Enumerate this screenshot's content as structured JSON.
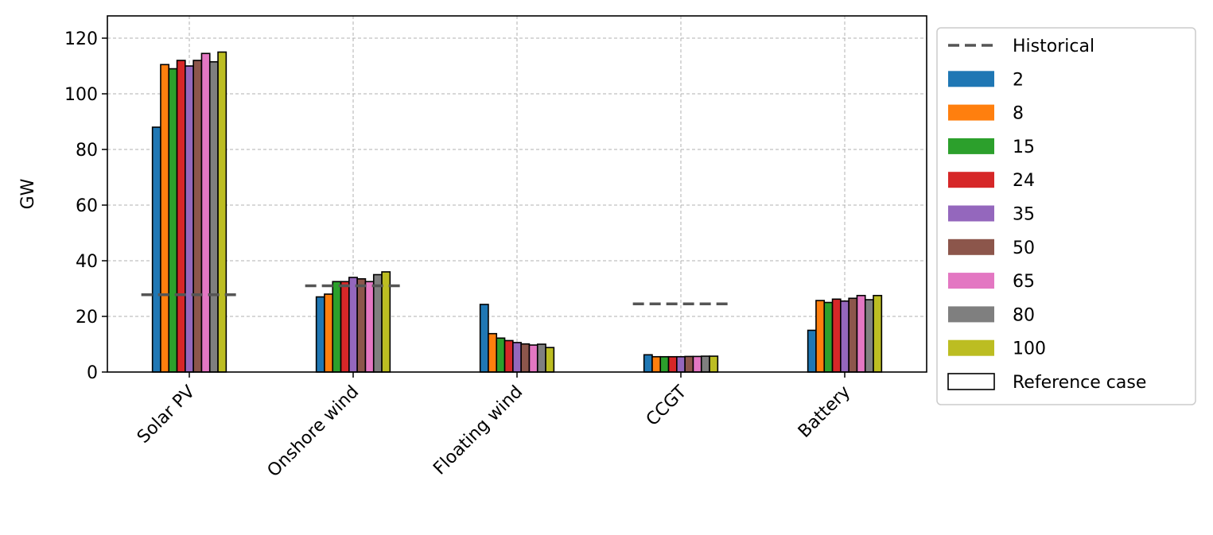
{
  "chart_data": {
    "type": "bar",
    "ylabel": "GW",
    "ylim": [
      0,
      128
    ],
    "yticks": [
      0,
      20,
      40,
      60,
      80,
      100,
      120
    ],
    "grid": true,
    "legend_position": "outside-right",
    "categories": [
      "Solar PV",
      "Onshore wind",
      "Floating wind",
      "CCGT",
      "Battery"
    ],
    "series": [
      {
        "name": "2",
        "color": "#1f77b4",
        "values": [
          88,
          27,
          24.3,
          6.2,
          15
        ]
      },
      {
        "name": "8",
        "color": "#ff7f0e",
        "values": [
          110.5,
          28,
          13.8,
          5.5,
          25.7
        ]
      },
      {
        "name": "15",
        "color": "#2ca02c",
        "values": [
          109,
          32.5,
          12.2,
          5.5,
          25
        ]
      },
      {
        "name": "24",
        "color": "#d62728",
        "values": [
          112,
          32.5,
          11.3,
          5.5,
          26.2
        ]
      },
      {
        "name": "35",
        "color": "#9467bd",
        "values": [
          110,
          34,
          10.6,
          5.5,
          25.5
        ]
      },
      {
        "name": "50",
        "color": "#8c564b",
        "values": [
          112,
          33.5,
          10.1,
          5.6,
          26.5
        ]
      },
      {
        "name": "65",
        "color": "#e377c2",
        "values": [
          114.5,
          32.5,
          9.7,
          5.6,
          27.5
        ]
      },
      {
        "name": "80",
        "color": "#7f7f7f",
        "values": [
          111.5,
          35,
          10,
          5.7,
          26
        ]
      },
      {
        "name": "100",
        "color": "#bcbd22",
        "values": [
          115,
          36,
          8.8,
          5.7,
          27.5
        ]
      }
    ],
    "reference_case_index": 4,
    "historical": {
      "name": "Historical",
      "color": "#555555",
      "values": [
        27.8,
        31,
        null,
        24.5,
        null
      ]
    },
    "reference_label": "Reference case"
  }
}
